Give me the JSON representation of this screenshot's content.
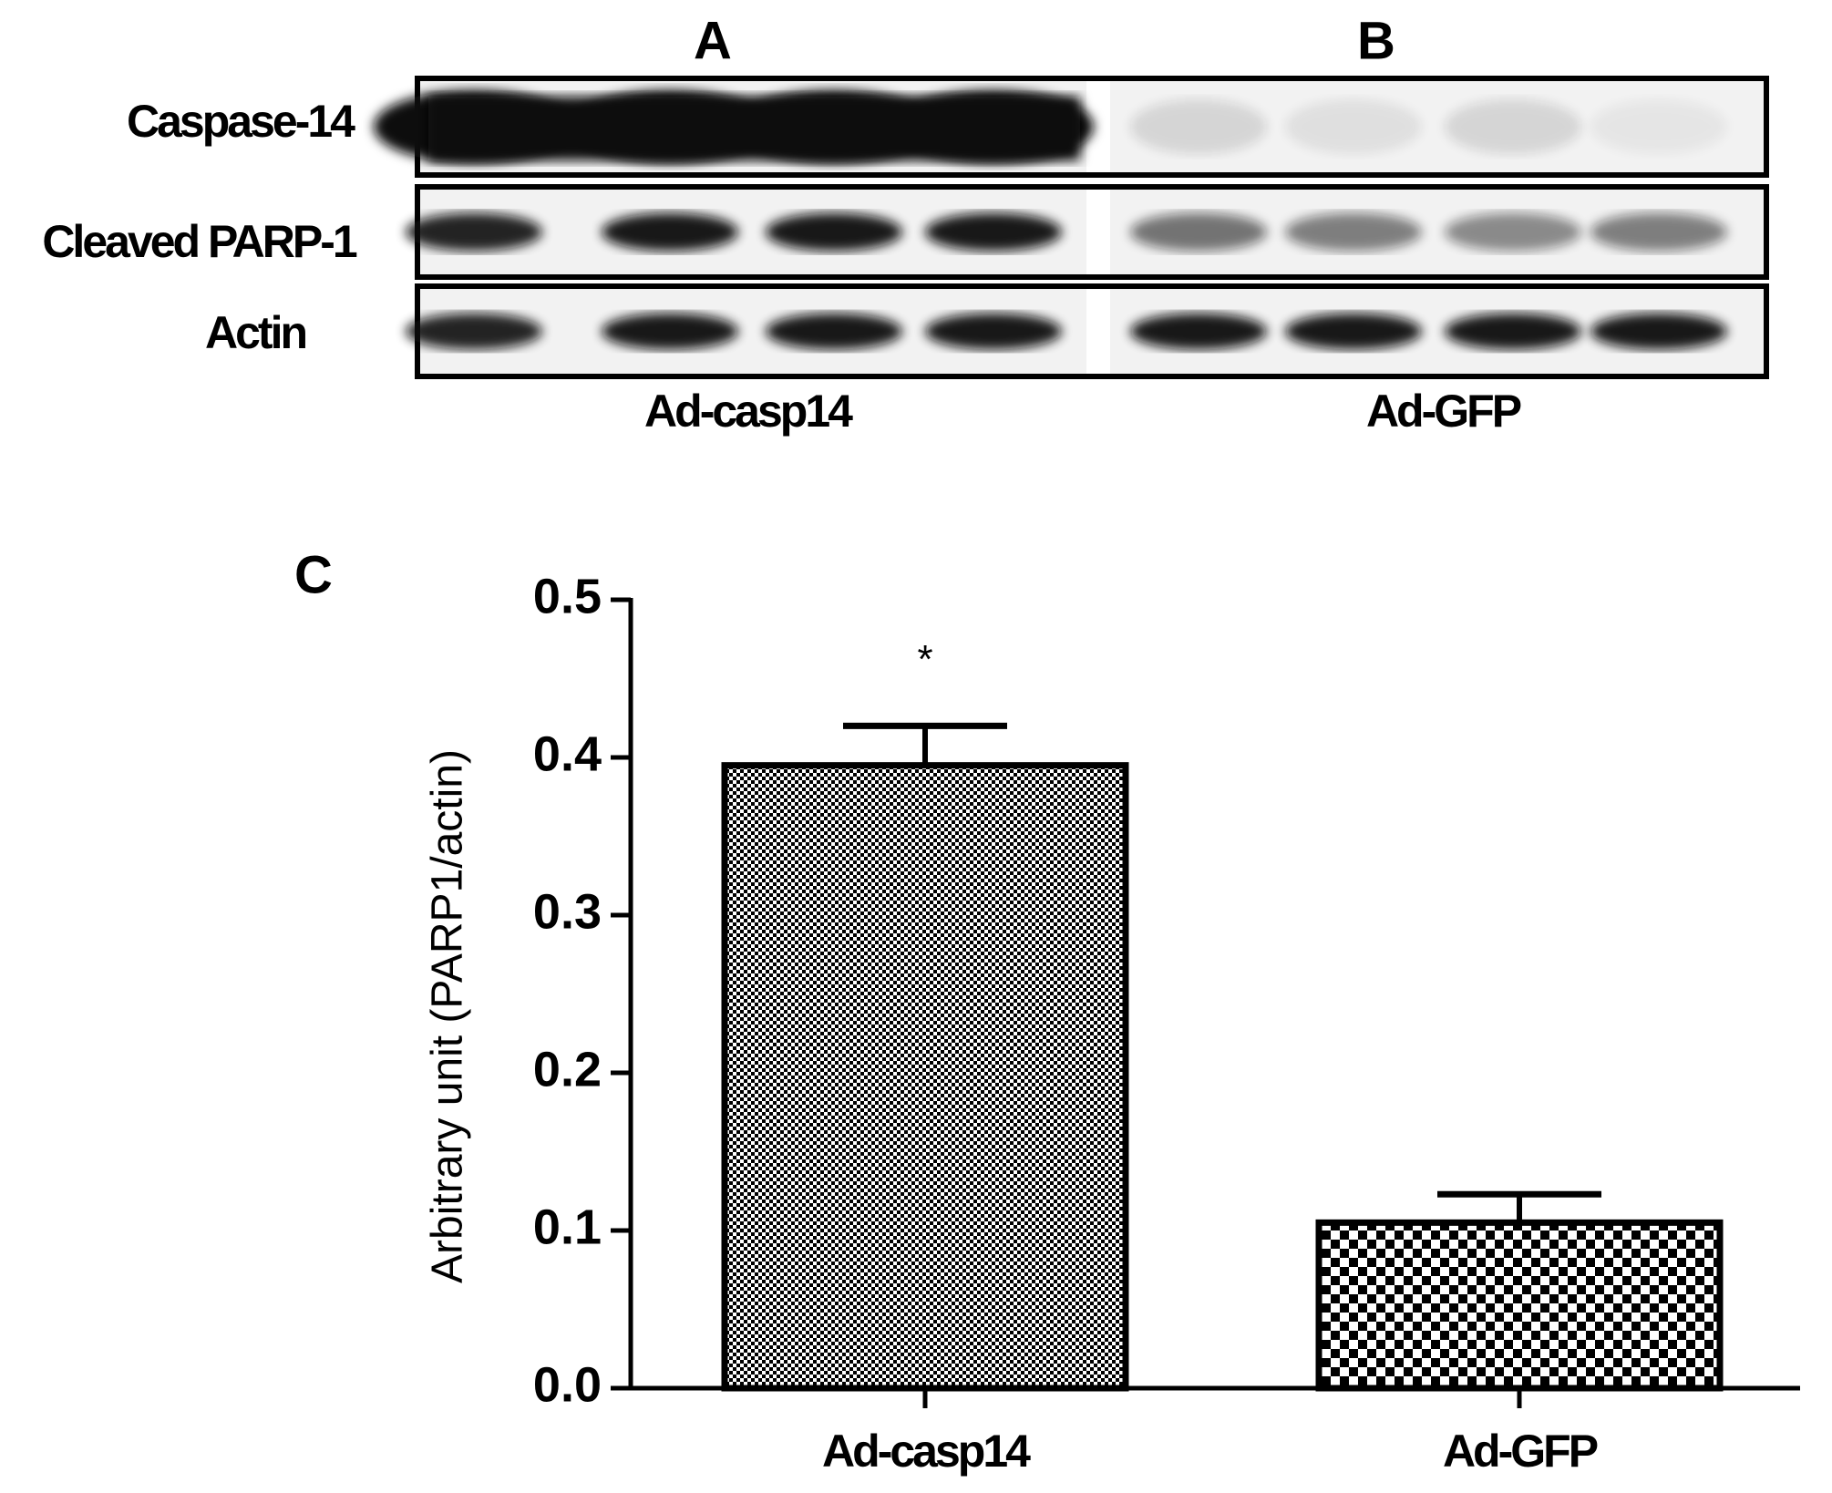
{
  "figure": {
    "panel_a": "A",
    "panel_b": "B",
    "panel_c": "C",
    "rows": [
      "Caspase-14",
      "Cleaved PARP-1",
      "Actin"
    ],
    "groups": [
      "Ad-casp14",
      "Ad-GFP"
    ]
  },
  "chart_data": {
    "type": "bar",
    "y_label": "Arbitrary unit (PARP1/actin)",
    "categories": [
      "Ad-casp14",
      "Ad-GFP"
    ],
    "values": [
      0.395,
      0.105
    ],
    "errors": [
      0.025,
      0.018
    ],
    "annotations": [
      "*",
      null
    ],
    "ylim": [
      0,
      0.5
    ],
    "yticks": [
      {
        "value": 0,
        "label": "0.0"
      },
      0.1,
      0.2,
      0.3,
      0.4,
      0.5
    ],
    "grid": false
  }
}
